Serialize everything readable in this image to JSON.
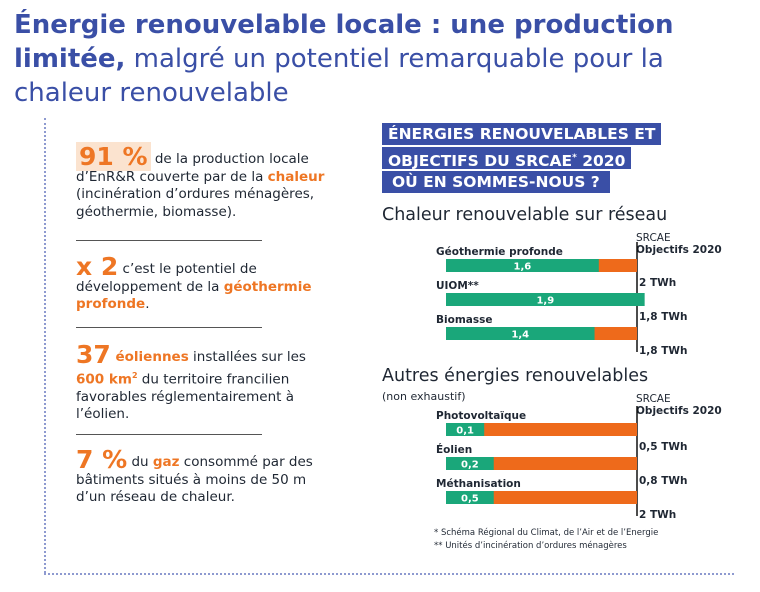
{
  "title": {
    "bold": "Énergie renouvelable locale : une production limitée,",
    "normal": " malgré un potentiel remarquable pour la chaleur renouvelable"
  },
  "stats": {
    "s1": {
      "big": "91 %",
      "t1": " de la production locale d’EnR&R couverte par de la ",
      "hl": "chaleur",
      "t2": " (incinération d’ordures ménagères, géothermie, biomasse)."
    },
    "s2": {
      "big": "x 2",
      "t1": " c’est le potentiel de développement de la ",
      "hl": "géothermie profonde",
      "t2": "."
    },
    "s3": {
      "big": "37",
      "hl1": " éoliennes",
      "t1": " installées sur les ",
      "hl2": "600 km",
      "sup": "2",
      "t2": " du territoire francilien favorables réglementairement à l’éolien."
    },
    "s4": {
      "big": "7 %",
      "t1": " du ",
      "hl": "gaz",
      "t2": " consommé par des bâtiments situés à moins de 50 m d’un réseau de chaleur."
    }
  },
  "banner": {
    "line1": "ÉNERGIES RENOUVELABLES ET",
    "line2a": "OBJECTIFS DU SRCAE",
    "line2sup": "*",
    "line2b": " 2020",
    "line3": "OÙ EN SOMMES-NOUS ?"
  },
  "section1": {
    "title": "Chaleur renouvelable sur réseau",
    "col_line1": "SRCAE",
    "col_line2": "Objectifs 2020"
  },
  "section2": {
    "title": "Autres énergies renouvelables",
    "note": "(non exhaustif)",
    "col_line1": "SRCAE",
    "col_line2": "Objectifs 2020"
  },
  "footnotes": {
    "f1": "* Schéma Régional du Climat, de l’Air et de l’Energie",
    "f2": "** Unités d’incinération d’ordures ménagères"
  },
  "colors": {
    "green": "#1aa77a",
    "orange": "#ee6a1b",
    "blue": "#3a4fa6"
  },
  "chart_data": [
    {
      "type": "bar",
      "orientation": "horizontal",
      "title": "Chaleur renouvelable sur réseau",
      "categories": [
        "Géothermie profonde",
        "UIOM**",
        "Biomasse"
      ],
      "values": [
        1.6,
        1.9,
        1.4
      ],
      "value_labels": [
        "1,6",
        "1,9",
        "1,4"
      ],
      "targets": [
        2,
        1.8,
        1.8
      ],
      "target_labels": [
        "2 TWh",
        "1,8 TWh",
        "1,8 TWh"
      ]
    },
    {
      "type": "bar",
      "orientation": "horizontal",
      "title": "Autres énergies renouvelables",
      "categories": [
        "Photovoltaïque",
        "Éolien",
        "Méthanisation"
      ],
      "values": [
        0.1,
        0.2,
        0.5
      ],
      "value_labels": [
        "0,1",
        "0,2",
        "0,5"
      ],
      "targets": [
        0.5,
        0.8,
        2
      ],
      "target_labels": [
        "0,5 TWh",
        "0,8 TWh",
        "2 TWh"
      ]
    }
  ]
}
